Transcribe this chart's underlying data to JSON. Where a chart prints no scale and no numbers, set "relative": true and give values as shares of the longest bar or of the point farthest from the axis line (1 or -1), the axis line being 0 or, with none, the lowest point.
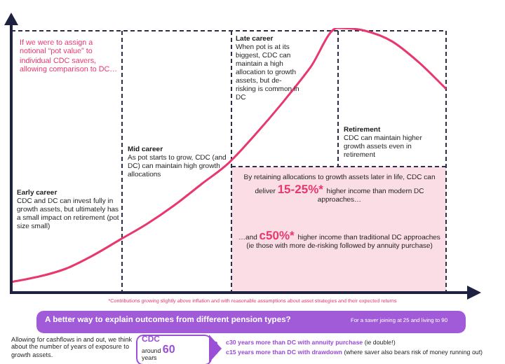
{
  "chart_data": {
    "type": "line",
    "relative": true,
    "legend": false,
    "marker": "none",
    "line_style": "solid",
    "categories": [
      null,
      null,
      null,
      null,
      null,
      null,
      null,
      null,
      null,
      null,
      null,
      null,
      null,
      null,
      null,
      null,
      null
    ],
    "series": [
      {
        "color": "#e8386d",
        "values": [
          0.04,
          0.06,
          0.09,
          0.14,
          0.2,
          0.26,
          0.33,
          0.41,
          0.49,
          0.6,
          0.72,
          0.85,
          1.0,
          0.99,
          0.95,
          0.87,
          0.77
        ]
      }
    ],
    "annotations": [
      "If we were to assign a notional “pot value” to individual CDC savers, allowing comparison to DC…",
      "Early career",
      "CDC and DC can invest fully in growth assets, but ultimately has a small impact on retirement (pot size small)",
      "Mid career",
      "As pot starts to grow, CDC (and DC) can maintain high growth allocations",
      "Late career",
      "When pot is at its biggest, CDC can maintain a high allocation to growth assets, but de-risking is common in DC",
      "Retirement",
      "CDC can maintain higher growth assets even in retirement",
      "By retaining allocations to growth assets later in life, CDC can deliver",
      "15-25%*",
      "higher income than modern DC approaches…",
      "…and",
      "c50%*",
      "higher income than traditional DC approaches (ie those with more de-risking followed by annuity purchase)",
      "*Contributions growing slightly above inflation and with reasonable assumptions about asset strategies and their expected returns",
      "A better way to explain outcomes from different pension types?",
      "For a saver joining at 25 and living to 90",
      "Allowing for cashflows in and out, we think about the number of years of exposure to growth assets.",
      "CDC",
      "around",
      "60",
      "years",
      "c30 years more than DC with annuity purchase",
      "(ie double!)",
      "c15 years more than DC with drawdown",
      "(where saver also bears risk of money running out)"
    ]
  }
}
